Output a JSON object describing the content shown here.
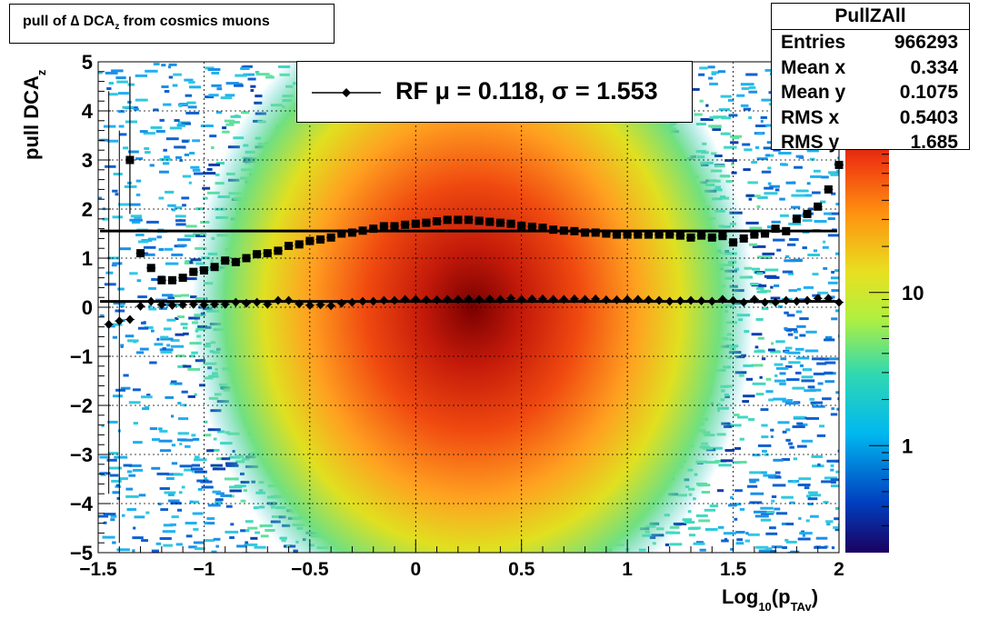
{
  "title": {
    "pre": "pull of ",
    "delta": "∆ DCA",
    "sub": "z",
    "post": " from cosmics muons"
  },
  "stats": {
    "name": "PullZAll",
    "rows": [
      {
        "label": "Entries",
        "value": "966293"
      },
      {
        "label": "Mean x",
        "value": "0.334"
      },
      {
        "label": "Mean y",
        "value": "0.1075"
      },
      {
        "label": "RMS x",
        "value": "0.5403"
      },
      {
        "label": "RMS y",
        "value": "1.685"
      }
    ]
  },
  "legend": {
    "text": "RF μ =  0.118, σ =   1.553"
  },
  "axes": {
    "ylabel_main": "pull DCA",
    "ylabel_sub": "z",
    "xlabel_main": "Log",
    "xlabel_sub1": "10",
    "xlabel_mid": "(p",
    "xlabel_sub2": "TAv",
    "xlabel_end": ")"
  },
  "colors": {
    "line": "#000000",
    "frame": "#000000"
  },
  "chart_data": {
    "type": "heatmap",
    "xlim": [
      -1.5,
      2
    ],
    "ylim": [
      -5,
      5
    ],
    "zscale": "log",
    "grid": true,
    "x_ticks": [
      "−1.5",
      "−1",
      "−0.5",
      "0",
      "0.5",
      "1",
      "1.5",
      "2"
    ],
    "y_ticks": [
      "−5",
      "−4",
      "−3",
      "−2",
      "−1",
      "0",
      "1",
      "2",
      "3",
      "4",
      "5"
    ],
    "z_ticks": [
      "1",
      "10"
    ],
    "hist_mean": {
      "x": 0.334,
      "y": 0.1075
    },
    "hist_rms": {
      "x": 0.5403,
      "y": 1.685
    },
    "fit_lines": [
      {
        "name": "mu",
        "y": 0.118
      },
      {
        "name": "sigma",
        "y": 1.553
      }
    ],
    "mean_points": {
      "x": [
        -1.45,
        -1.4,
        -1.35,
        -1.3,
        -1.25,
        -1.2,
        -1.15,
        -1.1,
        -1.05,
        -1.0,
        -0.95,
        -0.9,
        -0.85,
        -0.8,
        -0.75,
        -0.7,
        -0.65,
        -0.6,
        -0.55,
        -0.5,
        -0.45,
        -0.4,
        -0.35,
        -0.3,
        -0.25,
        -0.2,
        -0.15,
        -0.1,
        -0.05,
        0.0,
        0.05,
        0.1,
        0.15,
        0.2,
        0.25,
        0.3,
        0.35,
        0.4,
        0.45,
        0.5,
        0.55,
        0.6,
        0.65,
        0.7,
        0.75,
        0.8,
        0.85,
        0.9,
        0.95,
        1.0,
        1.05,
        1.1,
        1.15,
        1.2,
        1.25,
        1.3,
        1.35,
        1.4,
        1.45,
        1.5,
        1.55,
        1.6,
        1.65,
        1.7,
        1.75,
        1.8,
        1.85,
        1.9,
        1.95,
        2.0
      ],
      "y": [
        -0.35,
        -0.28,
        -0.25,
        0.02,
        0.12,
        0.05,
        0.04,
        0.05,
        0.06,
        0.05,
        0.06,
        0.06,
        0.1,
        0.08,
        0.1,
        0.06,
        0.14,
        0.14,
        0.07,
        0.04,
        0.05,
        0.03,
        0.08,
        0.1,
        0.12,
        0.12,
        0.14,
        0.14,
        0.16,
        0.16,
        0.15,
        0.15,
        0.16,
        0.16,
        0.17,
        0.16,
        0.17,
        0.16,
        0.18,
        0.16,
        0.17,
        0.17,
        0.16,
        0.16,
        0.17,
        0.16,
        0.17,
        0.15,
        0.15,
        0.16,
        0.16,
        0.15,
        0.14,
        0.12,
        0.13,
        0.14,
        0.13,
        0.12,
        0.16,
        0.14,
        0.1,
        0.16,
        0.1,
        0.1,
        0.14,
        0.12,
        0.14,
        0.18,
        0.18,
        0.1
      ]
    },
    "sigma_points": {
      "x": [
        -1.35,
        -1.3,
        -1.25,
        -1.2,
        -1.15,
        -1.1,
        -1.05,
        -1.0,
        -0.95,
        -0.9,
        -0.85,
        -0.8,
        -0.75,
        -0.7,
        -0.65,
        -0.6,
        -0.55,
        -0.5,
        -0.45,
        -0.4,
        -0.35,
        -0.3,
        -0.25,
        -0.2,
        -0.15,
        -0.1,
        -0.05,
        0.0,
        0.05,
        0.1,
        0.15,
        0.2,
        0.25,
        0.3,
        0.35,
        0.4,
        0.45,
        0.5,
        0.55,
        0.6,
        0.65,
        0.7,
        0.75,
        0.8,
        0.85,
        0.9,
        0.95,
        1.0,
        1.05,
        1.1,
        1.15,
        1.2,
        1.25,
        1.3,
        1.35,
        1.4,
        1.45,
        1.5,
        1.55,
        1.6,
        1.65,
        1.7,
        1.75,
        1.8,
        1.85,
        1.9,
        1.95,
        2.0
      ],
      "y": [
        3.0,
        1.1,
        0.8,
        0.55,
        0.55,
        0.6,
        0.72,
        0.75,
        0.82,
        0.95,
        0.92,
        1.0,
        1.08,
        1.1,
        1.15,
        1.25,
        1.28,
        1.35,
        1.38,
        1.42,
        1.5,
        1.52,
        1.56,
        1.6,
        1.65,
        1.65,
        1.68,
        1.7,
        1.72,
        1.75,
        1.78,
        1.78,
        1.78,
        1.76,
        1.74,
        1.72,
        1.7,
        1.66,
        1.64,
        1.62,
        1.58,
        1.56,
        1.55,
        1.52,
        1.52,
        1.5,
        1.48,
        1.48,
        1.48,
        1.48,
        1.48,
        1.48,
        1.46,
        1.42,
        1.46,
        1.42,
        1.45,
        1.32,
        1.4,
        1.48,
        1.5,
        1.6,
        1.55,
        1.8,
        1.9,
        2.05,
        2.4,
        2.9
      ]
    }
  }
}
